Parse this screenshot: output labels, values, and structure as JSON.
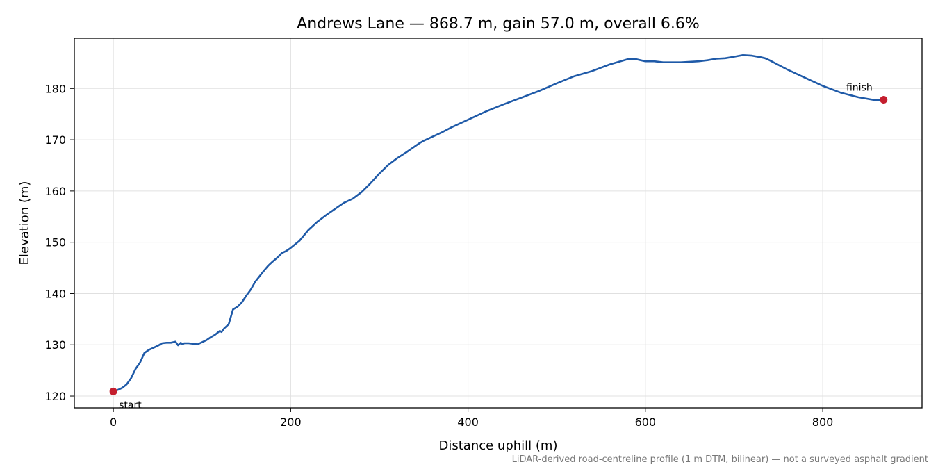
{
  "chart_data": {
    "type": "line",
    "title": "Andrews Lane — 868.7 m, gain 57.0 m, overall 6.6%",
    "xlabel": "Distance uphill (m)",
    "ylabel": "Elevation (m)",
    "xlim": [
      -44,
      912
    ],
    "ylim": [
      117.7,
      189.8
    ],
    "xticks": [
      0,
      200,
      400,
      600,
      800
    ],
    "yticks": [
      120,
      130,
      140,
      150,
      160,
      170,
      180
    ],
    "grid": true,
    "line_color": "#1f5aa8",
    "marker_color": "#c41e2e",
    "series": [
      {
        "x": [
          0,
          5,
          10,
          15,
          20,
          25,
          30,
          35,
          40,
          45,
          50,
          55,
          60,
          65,
          70,
          73,
          76,
          78,
          80,
          85,
          90,
          95,
          100,
          105,
          110,
          115,
          120,
          122,
          125,
          130,
          135,
          140,
          145,
          150,
          155,
          160,
          165,
          170,
          175,
          180,
          185,
          190,
          195,
          200,
          210,
          220,
          230,
          240,
          250,
          260,
          270,
          280,
          290,
          300,
          310,
          320,
          330,
          340,
          345,
          350,
          360,
          370,
          380,
          390,
          400,
          420,
          440,
          460,
          480,
          500,
          520,
          540,
          560,
          580,
          590,
          600,
          610,
          620,
          630,
          640,
          650,
          660,
          670,
          680,
          690,
          700,
          710,
          720,
          730,
          735,
          740,
          750,
          760,
          780,
          800,
          820,
          840,
          860,
          868.7
        ],
        "y": [
          120.9,
          121.2,
          121.6,
          122.3,
          123.5,
          125.3,
          126.5,
          128.4,
          129.0,
          129.4,
          129.8,
          130.3,
          130.4,
          130.4,
          130.6,
          129.9,
          130.4,
          130.1,
          130.3,
          130.3,
          130.2,
          130.1,
          130.5,
          130.9,
          131.5,
          132.0,
          132.7,
          132.5,
          133.2,
          134.0,
          136.9,
          137.4,
          138.3,
          139.6,
          140.8,
          142.3,
          143.4,
          144.5,
          145.5,
          146.3,
          147.0,
          147.9,
          148.3,
          148.9,
          150.3,
          152.4,
          154.0,
          155.3,
          156.5,
          157.7,
          158.5,
          159.8,
          161.5,
          163.4,
          165.1,
          166.4,
          167.5,
          168.7,
          169.3,
          169.8,
          170.6,
          171.4,
          172.3,
          173.1,
          173.9,
          175.5,
          176.9,
          178.2,
          179.5,
          181.0,
          182.4,
          183.4,
          184.7,
          185.7,
          185.7,
          185.3,
          185.3,
          185.1,
          185.1,
          185.1,
          185.2,
          185.3,
          185.5,
          185.8,
          185.9,
          186.2,
          186.5,
          186.4,
          186.1,
          185.9,
          185.5,
          184.6,
          183.7,
          182.1,
          180.5,
          179.2,
          178.3,
          177.7,
          177.8
        ]
      }
    ],
    "annotations": [
      {
        "label": "start",
        "x": 0,
        "y": 120.9
      },
      {
        "label": "finish",
        "x": 868.7,
        "y": 177.8
      }
    ],
    "footnote": "LiDAR-derived road-centreline profile (1 m DTM, bilinear) — not a surveyed asphalt gradient"
  }
}
